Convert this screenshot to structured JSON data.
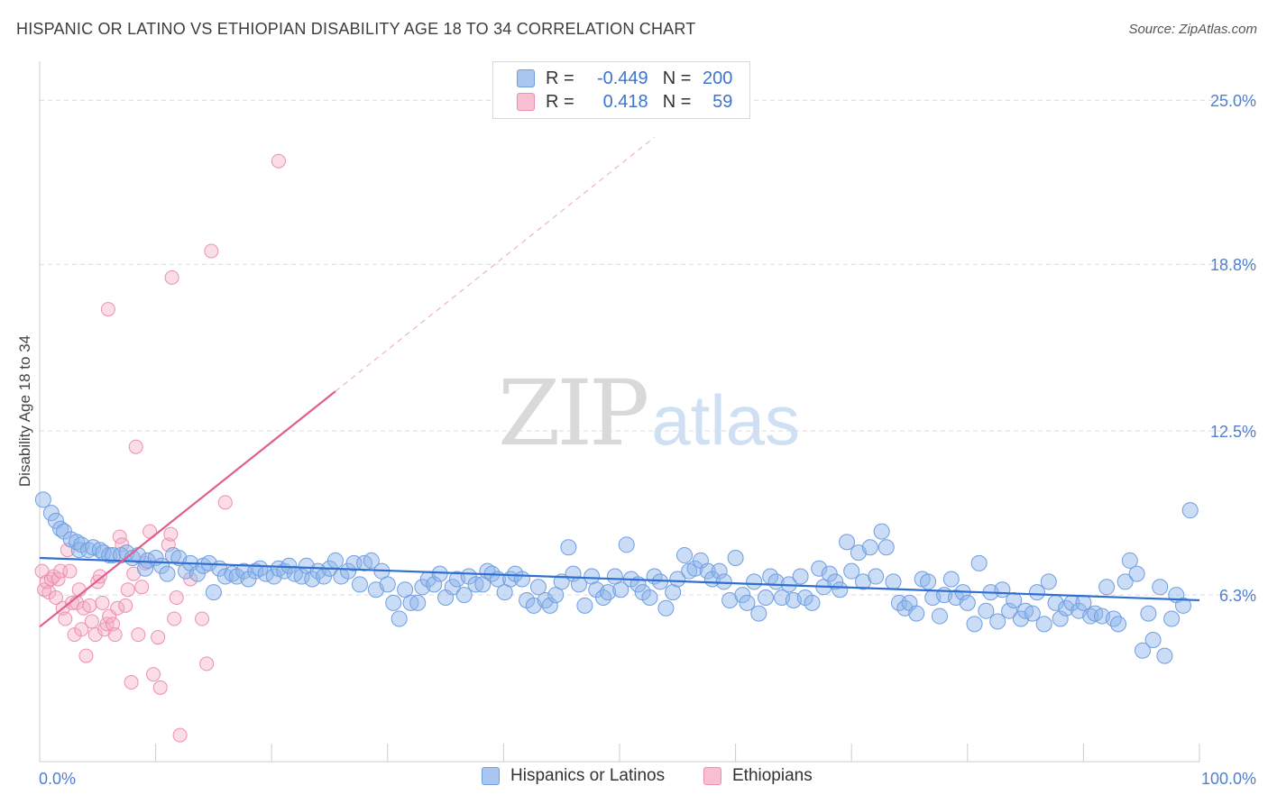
{
  "header": {
    "title": "HISPANIC OR LATINO VS ETHIOPIAN DISABILITY AGE 18 TO 34 CORRELATION CHART",
    "source": "Source: ZipAtlas.com"
  },
  "watermark": {
    "zip": "ZIP",
    "atlas": "atlas"
  },
  "legend_top": {
    "rows": [
      {
        "r_label": "R =",
        "r_value": "-0.449",
        "n_label": "N =",
        "n_value": "200",
        "color": "#a9c6f0",
        "border": "#6f9ee0"
      },
      {
        "r_label": "R =",
        "r_value": "0.418",
        "n_label": "N =",
        "n_value": "59",
        "color": "#f7bfd1",
        "border": "#ec8fae"
      }
    ]
  },
  "legend_bottom": {
    "items": [
      {
        "label": "Hispanics or Latinos",
        "color": "#a9c6f0",
        "border": "#6f9ee0"
      },
      {
        "label": "Ethiopians",
        "color": "#f7bfd1",
        "border": "#ec8fae"
      }
    ]
  },
  "colors": {
    "blue_fill": "rgba(140,180,235,0.45)",
    "blue_stroke": "#6f9ee0",
    "blue_line": "#2f6fd0",
    "pink_fill": "rgba(245,170,195,0.40)",
    "pink_stroke": "#ec8fae",
    "pink_line": "#e35d8a",
    "grid": "#dcdcdc",
    "tick_text": "#4f7fd0"
  },
  "chart_data": {
    "type": "scatter",
    "title": "HISPANIC OR LATINO VS ETHIOPIAN DISABILITY AGE 18 TO 34 CORRELATION CHART",
    "xlabel": "",
    "ylabel": "Disability Age 18 to 34",
    "xlim": [
      0,
      100
    ],
    "ylim": [
      0,
      26.2
    ],
    "x_ticks": [
      {
        "value": 0,
        "label": "0.0%"
      },
      {
        "value": 100,
        "label": "100.0%"
      }
    ],
    "y_ticks": [
      {
        "value": 6.3,
        "label": "6.3%"
      },
      {
        "value": 12.5,
        "label": "12.5%"
      },
      {
        "value": 18.8,
        "label": "18.8%"
      },
      {
        "value": 25.0,
        "label": "25.0%"
      }
    ],
    "grid": true,
    "legend_position": "bottom",
    "series": [
      {
        "name": "Hispanics or Latinos",
        "R": -0.449,
        "N": 200,
        "trend": {
          "x": [
            0,
            100
          ],
          "y": [
            7.7,
            6.1
          ]
        },
        "points": [
          [
            0.3,
            9.9
          ],
          [
            1.0,
            9.4
          ],
          [
            1.4,
            9.1
          ],
          [
            1.8,
            8.8
          ],
          [
            2.1,
            8.7
          ],
          [
            2.7,
            8.4
          ],
          [
            3.2,
            8.3
          ],
          [
            3.4,
            8.0
          ],
          [
            3.6,
            8.2
          ],
          [
            4.2,
            8.0
          ],
          [
            4.6,
            8.1
          ],
          [
            5.2,
            8.0
          ],
          [
            5.5,
            7.9
          ],
          [
            6.0,
            7.8
          ],
          [
            6.3,
            7.8
          ],
          [
            7.0,
            7.8
          ],
          [
            7.5,
            7.9
          ],
          [
            8.0,
            7.7
          ],
          [
            8.5,
            7.8
          ],
          [
            9.1,
            7.3
          ],
          [
            9.3,
            7.6
          ],
          [
            10.0,
            7.7
          ],
          [
            10.5,
            7.4
          ],
          [
            11.0,
            7.1
          ],
          [
            11.5,
            7.8
          ],
          [
            12.0,
            7.7
          ],
          [
            12.6,
            7.2
          ],
          [
            13.0,
            7.5
          ],
          [
            13.6,
            7.1
          ],
          [
            14.1,
            7.4
          ],
          [
            14.6,
            7.5
          ],
          [
            15.0,
            6.4
          ],
          [
            15.5,
            7.3
          ],
          [
            16.0,
            7.0
          ],
          [
            16.6,
            7.1
          ],
          [
            17.0,
            7.0
          ],
          [
            17.6,
            7.2
          ],
          [
            18.0,
            6.9
          ],
          [
            18.6,
            7.2
          ],
          [
            19.0,
            7.3
          ],
          [
            19.5,
            7.1
          ],
          [
            20.2,
            7.0
          ],
          [
            20.6,
            7.3
          ],
          [
            21.1,
            7.2
          ],
          [
            21.5,
            7.4
          ],
          [
            22.0,
            7.1
          ],
          [
            22.6,
            7.0
          ],
          [
            23.0,
            7.4
          ],
          [
            23.5,
            6.9
          ],
          [
            24.0,
            7.2
          ],
          [
            24.5,
            7.0
          ],
          [
            25.0,
            7.3
          ],
          [
            25.5,
            7.6
          ],
          [
            26.0,
            7.0
          ],
          [
            26.6,
            7.2
          ],
          [
            27.1,
            7.5
          ],
          [
            27.6,
            6.7
          ],
          [
            28.0,
            7.5
          ],
          [
            28.6,
            7.6
          ],
          [
            29.0,
            6.5
          ],
          [
            29.5,
            7.2
          ],
          [
            30.0,
            6.7
          ],
          [
            30.5,
            6.0
          ],
          [
            31.0,
            5.4
          ],
          [
            31.5,
            6.5
          ],
          [
            32.0,
            6.0
          ],
          [
            32.6,
            6.0
          ],
          [
            33.0,
            6.6
          ],
          [
            33.5,
            6.9
          ],
          [
            34.0,
            6.7
          ],
          [
            34.5,
            7.1
          ],
          [
            35.0,
            6.2
          ],
          [
            35.6,
            6.6
          ],
          [
            36.0,
            6.9
          ],
          [
            36.6,
            6.3
          ],
          [
            37.0,
            7.0
          ],
          [
            37.6,
            6.7
          ],
          [
            38.2,
            6.7
          ],
          [
            38.6,
            7.2
          ],
          [
            39.0,
            7.1
          ],
          [
            39.5,
            6.9
          ],
          [
            40.1,
            6.4
          ],
          [
            40.6,
            6.9
          ],
          [
            41.0,
            7.1
          ],
          [
            41.6,
            6.9
          ],
          [
            42.0,
            6.1
          ],
          [
            42.6,
            5.9
          ],
          [
            43.0,
            6.6
          ],
          [
            43.6,
            6.1
          ],
          [
            44.0,
            5.9
          ],
          [
            44.5,
            6.3
          ],
          [
            45.0,
            6.8
          ],
          [
            45.6,
            8.1
          ],
          [
            46.0,
            7.1
          ],
          [
            46.5,
            6.7
          ],
          [
            47.0,
            5.9
          ],
          [
            47.6,
            7.0
          ],
          [
            48.0,
            6.5
          ],
          [
            48.6,
            6.2
          ],
          [
            49.0,
            6.4
          ],
          [
            49.6,
            7.0
          ],
          [
            50.1,
            6.5
          ],
          [
            50.6,
            8.2
          ],
          [
            51.0,
            6.9
          ],
          [
            51.6,
            6.7
          ],
          [
            52.0,
            6.4
          ],
          [
            52.6,
            6.2
          ],
          [
            53.0,
            7.0
          ],
          [
            53.5,
            6.8
          ],
          [
            54.0,
            5.8
          ],
          [
            54.6,
            6.4
          ],
          [
            55.0,
            6.9
          ],
          [
            55.6,
            7.8
          ],
          [
            56.0,
            7.2
          ],
          [
            56.5,
            7.3
          ],
          [
            57.0,
            7.6
          ],
          [
            57.6,
            7.2
          ],
          [
            58.0,
            6.9
          ],
          [
            58.6,
            7.2
          ],
          [
            59.0,
            6.8
          ],
          [
            59.5,
            6.1
          ],
          [
            60.0,
            7.7
          ],
          [
            60.6,
            6.3
          ],
          [
            61.0,
            6.0
          ],
          [
            61.6,
            6.8
          ],
          [
            62.0,
            5.6
          ],
          [
            62.6,
            6.2
          ],
          [
            63.0,
            7.0
          ],
          [
            63.5,
            6.8
          ],
          [
            64.0,
            6.2
          ],
          [
            64.6,
            6.7
          ],
          [
            65.0,
            6.1
          ],
          [
            65.6,
            7.0
          ],
          [
            66.0,
            6.2
          ],
          [
            66.6,
            6.0
          ],
          [
            67.2,
            7.3
          ],
          [
            67.6,
            6.6
          ],
          [
            68.1,
            7.1
          ],
          [
            68.6,
            6.8
          ],
          [
            69.0,
            6.5
          ],
          [
            69.6,
            8.3
          ],
          [
            70.0,
            7.2
          ],
          [
            70.6,
            7.9
          ],
          [
            71.0,
            6.8
          ],
          [
            71.6,
            8.1
          ],
          [
            72.1,
            7.0
          ],
          [
            72.6,
            8.7
          ],
          [
            73.0,
            8.1
          ],
          [
            73.6,
            6.8
          ],
          [
            74.1,
            6.0
          ],
          [
            74.6,
            5.8
          ],
          [
            75.0,
            6.0
          ],
          [
            75.6,
            5.6
          ],
          [
            76.1,
            6.9
          ],
          [
            76.6,
            6.8
          ],
          [
            77.0,
            6.2
          ],
          [
            77.6,
            5.5
          ],
          [
            78.0,
            6.3
          ],
          [
            78.6,
            6.9
          ],
          [
            79.0,
            6.2
          ],
          [
            79.6,
            6.4
          ],
          [
            80.0,
            6.0
          ],
          [
            80.6,
            5.2
          ],
          [
            81.0,
            7.5
          ],
          [
            81.6,
            5.7
          ],
          [
            82.0,
            6.4
          ],
          [
            82.6,
            5.3
          ],
          [
            83.0,
            6.5
          ],
          [
            83.6,
            5.7
          ],
          [
            84.0,
            6.1
          ],
          [
            84.6,
            5.4
          ],
          [
            85.0,
            5.7
          ],
          [
            85.6,
            5.6
          ],
          [
            86.0,
            6.4
          ],
          [
            86.6,
            5.2
          ],
          [
            87.0,
            6.8
          ],
          [
            87.6,
            6.0
          ],
          [
            88.0,
            5.4
          ],
          [
            88.5,
            5.8
          ],
          [
            89.0,
            6.0
          ],
          [
            89.6,
            5.7
          ],
          [
            90.0,
            6.0
          ],
          [
            90.6,
            5.5
          ],
          [
            91.0,
            5.6
          ],
          [
            91.6,
            5.5
          ],
          [
            92.0,
            6.6
          ],
          [
            92.6,
            5.4
          ],
          [
            93.0,
            5.2
          ],
          [
            93.6,
            6.8
          ],
          [
            94.0,
            7.6
          ],
          [
            94.6,
            7.1
          ],
          [
            95.1,
            4.2
          ],
          [
            95.6,
            5.6
          ],
          [
            96.0,
            4.6
          ],
          [
            96.6,
            6.6
          ],
          [
            97.0,
            4.0
          ],
          [
            97.6,
            5.4
          ],
          [
            98.0,
            6.3
          ],
          [
            98.6,
            5.9
          ],
          [
            99.2,
            9.5
          ]
        ]
      },
      {
        "name": "Ethiopians",
        "R": 0.418,
        "N": 59,
        "trend_solid": {
          "x": [
            0,
            25.5
          ],
          "y": [
            5.1,
            14.0
          ]
        },
        "trend_dashed": {
          "x": [
            25.5,
            53.0
          ],
          "y": [
            14.0,
            23.6
          ]
        },
        "points": [
          [
            0.2,
            7.2
          ],
          [
            0.4,
            6.5
          ],
          [
            0.6,
            6.8
          ],
          [
            0.8,
            6.4
          ],
          [
            1.0,
            6.9
          ],
          [
            1.2,
            7.0
          ],
          [
            1.4,
            6.2
          ],
          [
            1.6,
            6.9
          ],
          [
            1.8,
            7.2
          ],
          [
            2.0,
            5.8
          ],
          [
            2.2,
            5.4
          ],
          [
            2.4,
            8.0
          ],
          [
            2.6,
            7.2
          ],
          [
            2.8,
            6.0
          ],
          [
            3.0,
            4.8
          ],
          [
            3.2,
            6.0
          ],
          [
            3.4,
            6.5
          ],
          [
            3.6,
            5.0
          ],
          [
            3.8,
            5.8
          ],
          [
            4.0,
            4.0
          ],
          [
            4.3,
            5.9
          ],
          [
            4.5,
            5.3
          ],
          [
            4.8,
            4.8
          ],
          [
            5.0,
            6.8
          ],
          [
            5.2,
            7.0
          ],
          [
            5.4,
            6.0
          ],
          [
            5.6,
            5.0
          ],
          [
            5.8,
            5.2
          ],
          [
            6.0,
            5.5
          ],
          [
            6.3,
            5.2
          ],
          [
            6.5,
            4.8
          ],
          [
            6.7,
            5.8
          ],
          [
            6.9,
            8.5
          ],
          [
            7.1,
            8.2
          ],
          [
            7.4,
            5.9
          ],
          [
            7.6,
            6.5
          ],
          [
            7.9,
            3.0
          ],
          [
            8.1,
            7.1
          ],
          [
            8.3,
            11.9
          ],
          [
            8.5,
            4.8
          ],
          [
            8.8,
            6.6
          ],
          [
            9.1,
            7.5
          ],
          [
            9.5,
            8.7
          ],
          [
            9.8,
            3.3
          ],
          [
            10.2,
            4.7
          ],
          [
            10.4,
            2.8
          ],
          [
            11.1,
            8.2
          ],
          [
            11.3,
            8.6
          ],
          [
            11.6,
            5.4
          ],
          [
            11.8,
            6.2
          ],
          [
            12.1,
            1.0
          ],
          [
            13.0,
            6.9
          ],
          [
            14.0,
            5.4
          ],
          [
            14.4,
            3.7
          ],
          [
            14.8,
            19.3
          ],
          [
            16.0,
            9.8
          ],
          [
            20.6,
            22.7
          ],
          [
            11.4,
            18.3
          ],
          [
            5.9,
            17.1
          ]
        ]
      }
    ]
  }
}
